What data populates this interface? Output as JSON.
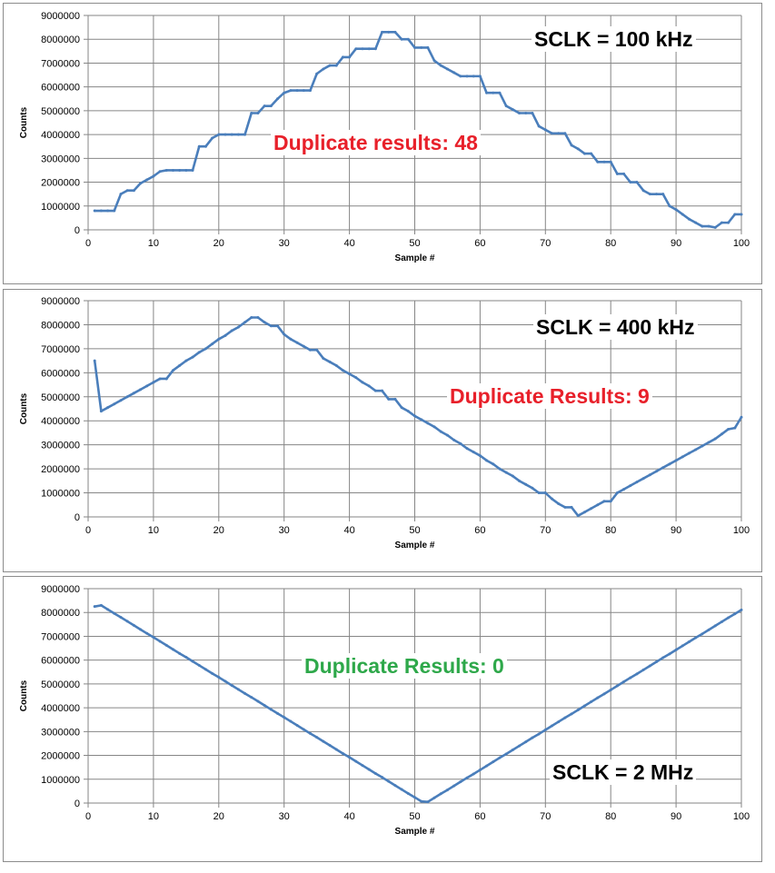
{
  "chart_data": [
    {
      "type": "line",
      "title": "",
      "xlabel": "Sample #",
      "ylabel": "Counts",
      "xlim": [
        0,
        100
      ],
      "ylim": [
        0,
        9000000
      ],
      "xticks": [
        "0",
        "10",
        "20",
        "30",
        "40",
        "50",
        "60",
        "70",
        "80",
        "90",
        "100"
      ],
      "yticks": [
        "0",
        "1000000",
        "2000000",
        "3000000",
        "4000000",
        "5000000",
        "6000000",
        "7000000",
        "8000000",
        "9000000"
      ],
      "grid": true,
      "annotations": [
        "SCLK = 100 kHz",
        "Duplicate results: 48"
      ],
      "x_start": 1,
      "value_unit": 1000000,
      "series": [
        {
          "name": "Counts",
          "color": "#4a7ebb",
          "values": [
            0.8,
            0.8,
            0.8,
            0.8,
            1.5,
            1.65,
            1.65,
            1.95,
            2.1,
            2.25,
            2.45,
            2.5,
            2.5,
            2.5,
            2.5,
            2.5,
            3.5,
            3.5,
            3.85,
            4.0,
            4.0,
            4.0,
            4.0,
            4.0,
            4.9,
            4.9,
            5.2,
            5.2,
            5.5,
            5.75,
            5.85,
            5.85,
            5.85,
            5.85,
            6.55,
            6.75,
            6.9,
            6.9,
            7.25,
            7.25,
            7.6,
            7.6,
            7.6,
            7.6,
            8.3,
            8.3,
            8.3,
            8.0,
            8.0,
            7.65,
            7.65,
            7.65,
            7.1,
            6.9,
            6.75,
            6.6,
            6.45,
            6.45,
            6.45,
            6.45,
            5.75,
            5.75,
            5.75,
            5.2,
            5.05,
            4.9,
            4.9,
            4.9,
            4.35,
            4.2,
            4.05,
            4.05,
            4.05,
            3.55,
            3.4,
            3.2,
            3.2,
            2.85,
            2.85,
            2.85,
            2.35,
            2.35,
            2.0,
            2.0,
            1.65,
            1.5,
            1.5,
            1.5,
            1.0,
            0.85,
            0.65,
            0.45,
            0.3,
            0.15,
            0.15,
            0.1,
            0.3,
            0.3,
            0.65,
            0.65
          ]
        }
      ]
    },
    {
      "type": "line",
      "title": "",
      "xlabel": "Sample #",
      "ylabel": "Counts",
      "xlim": [
        0,
        100
      ],
      "ylim": [
        0,
        9000000
      ],
      "xticks": [
        "0",
        "10",
        "20",
        "30",
        "40",
        "50",
        "60",
        "70",
        "80",
        "90",
        "100"
      ],
      "yticks": [
        "0",
        "1000000",
        "2000000",
        "3000000",
        "4000000",
        "5000000",
        "6000000",
        "7000000",
        "8000000",
        "9000000"
      ],
      "grid": true,
      "annotations": [
        "SCLK = 400 kHz",
        "Duplicate Results: 9"
      ],
      "x_start": 1,
      "value_unit": 1000000,
      "series": [
        {
          "name": "Counts",
          "color": "#4a7ebb",
          "values": [
            6.5,
            4.4,
            4.55,
            4.7,
            4.85,
            5.0,
            5.15,
            5.3,
            5.45,
            5.6,
            5.75,
            5.75,
            6.1,
            6.3,
            6.5,
            6.65,
            6.85,
            7.0,
            7.2,
            7.4,
            7.55,
            7.75,
            7.9,
            8.1,
            8.3,
            8.3,
            8.1,
            7.95,
            7.95,
            7.6,
            7.4,
            7.25,
            7.1,
            6.95,
            6.95,
            6.6,
            6.45,
            6.3,
            6.1,
            5.95,
            5.8,
            5.6,
            5.45,
            5.25,
            5.25,
            4.9,
            4.9,
            4.55,
            4.4,
            4.2,
            4.05,
            3.9,
            3.75,
            3.55,
            3.4,
            3.2,
            3.05,
            2.85,
            2.7,
            2.55,
            2.35,
            2.2,
            2.0,
            1.85,
            1.7,
            1.5,
            1.35,
            1.2,
            1.0,
            1.0,
            0.75,
            0.55,
            0.4,
            0.4,
            0.05,
            0.2,
            0.35,
            0.5,
            0.65,
            0.65,
            1.0,
            1.15,
            1.3,
            1.45,
            1.6,
            1.75,
            1.9,
            2.05,
            2.2,
            2.35,
            2.5,
            2.65,
            2.8,
            2.95,
            3.1,
            3.25,
            3.45,
            3.65,
            3.7,
            4.15
          ]
        }
      ]
    },
    {
      "type": "line",
      "title": "",
      "xlabel": "Sample #",
      "ylabel": "Counts",
      "xlim": [
        0,
        100
      ],
      "ylim": [
        0,
        9000000
      ],
      "xticks": [
        "0",
        "10",
        "20",
        "30",
        "40",
        "50",
        "60",
        "70",
        "80",
        "90",
        "100"
      ],
      "yticks": [
        "0",
        "1000000",
        "2000000",
        "3000000",
        "4000000",
        "5000000",
        "6000000",
        "7000000",
        "8000000",
        "9000000"
      ],
      "grid": true,
      "annotations": [
        "Duplicate Results: 0",
        "SCLK = 2 MHz"
      ],
      "x_start": 1,
      "value_unit": 1000000,
      "series": [
        {
          "name": "Counts",
          "color": "#4a7ebb",
          "values": [
            8.25,
            8.3,
            8.13,
            7.96,
            7.8,
            7.63,
            7.46,
            7.29,
            7.12,
            6.96,
            6.79,
            6.62,
            6.45,
            6.28,
            6.12,
            5.95,
            5.78,
            5.61,
            5.44,
            5.28,
            5.11,
            4.94,
            4.77,
            4.6,
            4.44,
            4.27,
            4.1,
            3.93,
            3.76,
            3.6,
            3.43,
            3.26,
            3.09,
            2.92,
            2.76,
            2.59,
            2.42,
            2.25,
            2.08,
            1.92,
            1.75,
            1.58,
            1.41,
            1.24,
            1.08,
            0.91,
            0.74,
            0.57,
            0.4,
            0.24,
            0.07,
            0.05,
            0.22,
            0.39,
            0.55,
            0.72,
            0.89,
            1.06,
            1.22,
            1.39,
            1.56,
            1.73,
            1.9,
            2.06,
            2.23,
            2.4,
            2.57,
            2.74,
            2.9,
            3.07,
            3.24,
            3.41,
            3.58,
            3.74,
            3.91,
            4.08,
            4.25,
            4.42,
            4.58,
            4.75,
            4.92,
            5.09,
            5.26,
            5.42,
            5.59,
            5.76,
            5.93,
            6.1,
            6.26,
            6.43,
            6.6,
            6.77,
            6.94,
            7.1,
            7.27,
            7.44,
            7.61,
            7.78,
            7.94,
            8.11
          ]
        }
      ]
    }
  ]
}
